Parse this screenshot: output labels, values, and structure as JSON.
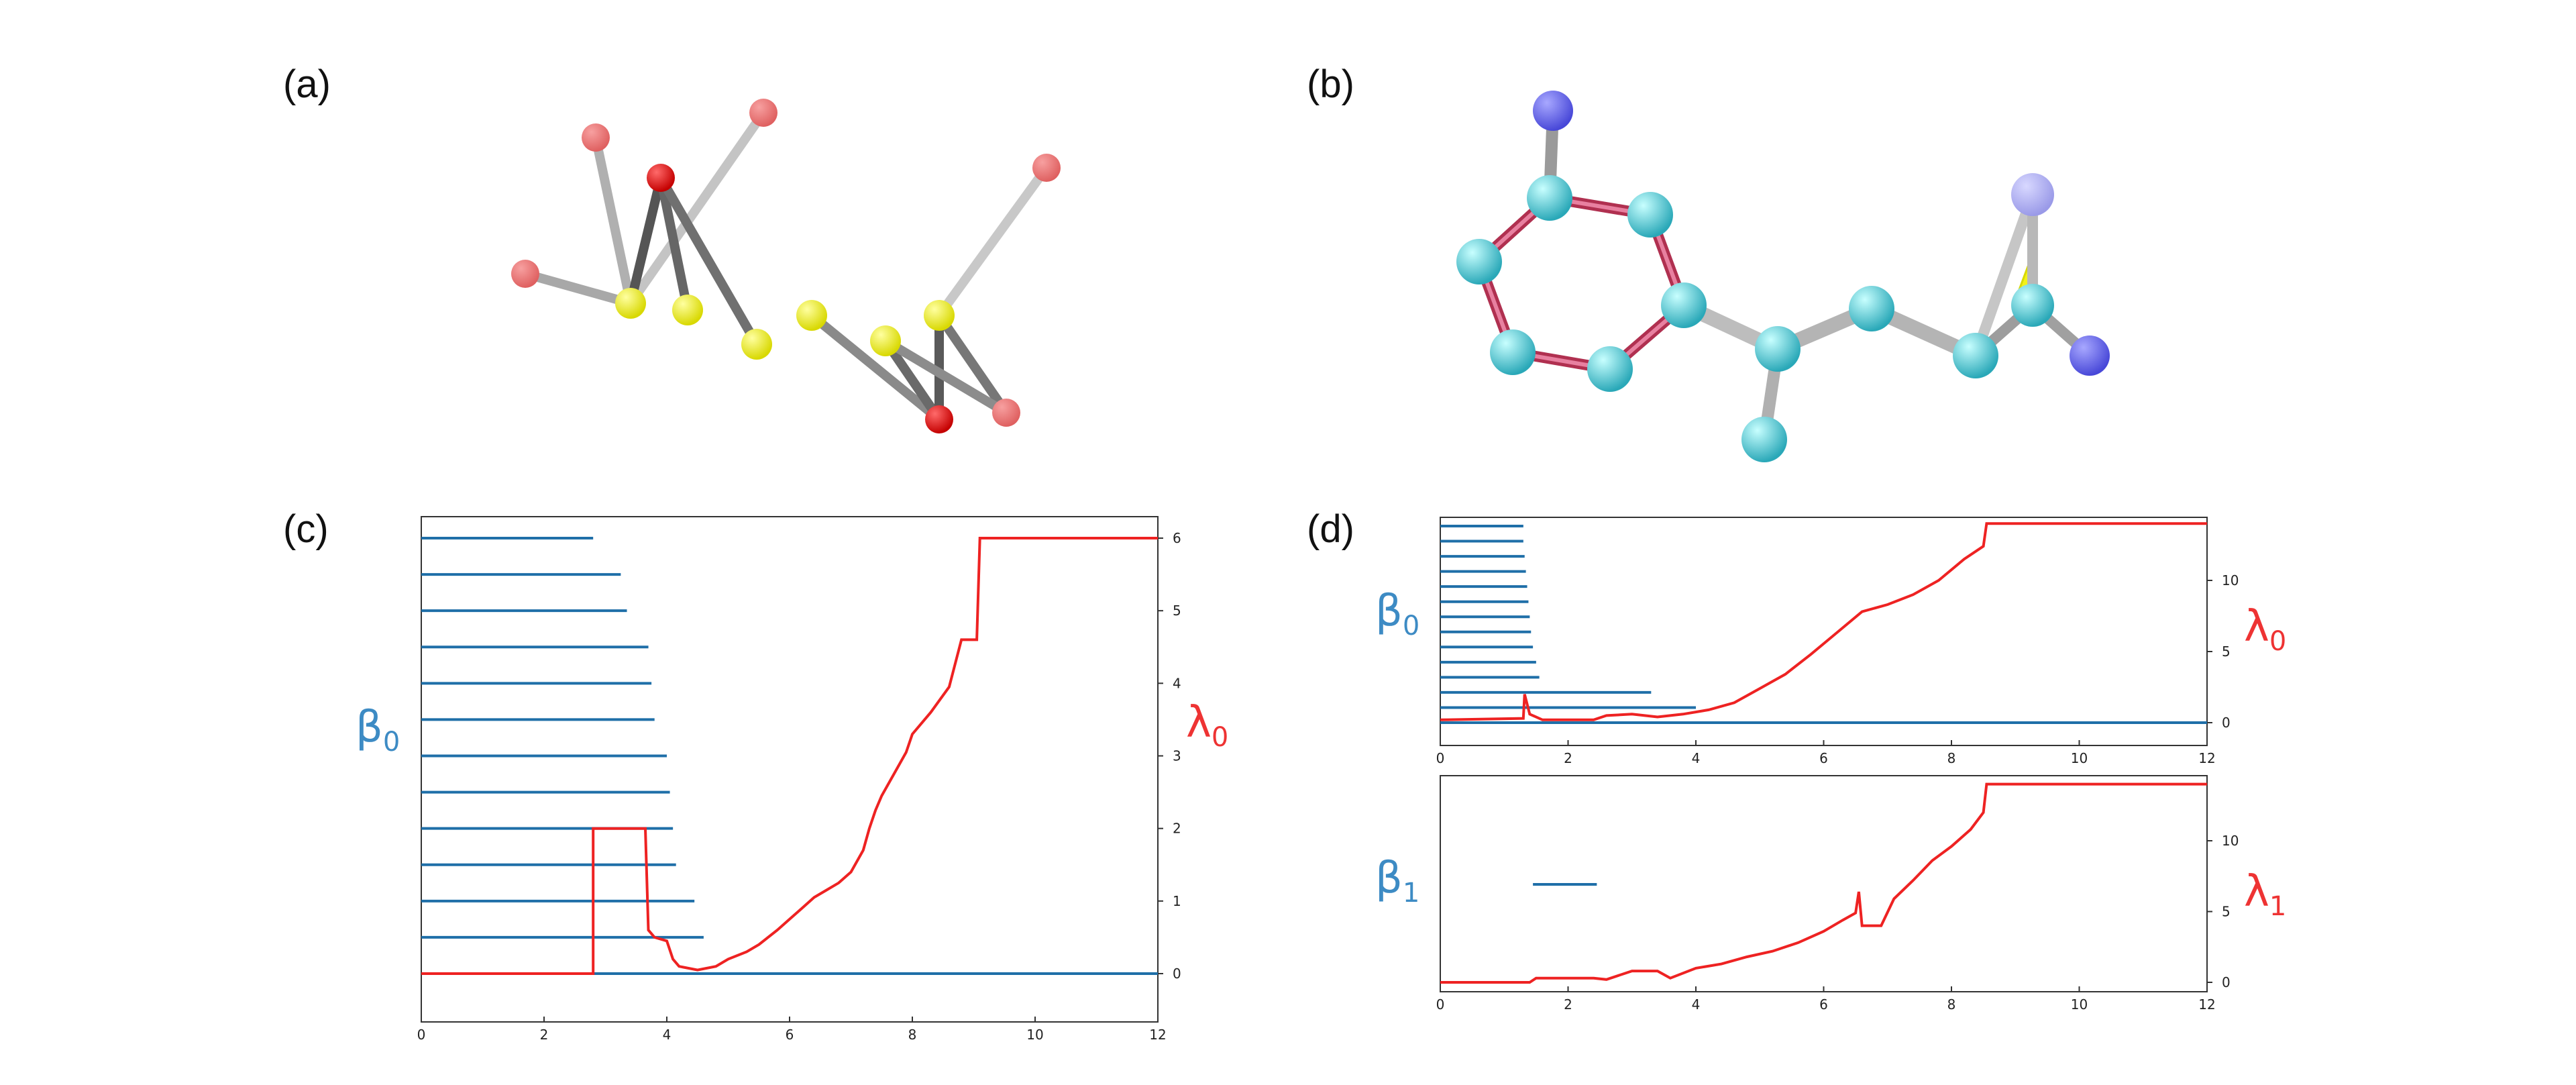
{
  "panels": {
    "a": {
      "label": "(a)"
    },
    "b": {
      "label": "(b)"
    },
    "c": {
      "label": "(c)"
    },
    "d": {
      "label": "(d)"
    }
  },
  "colors": {
    "barcode": "#1f6fa8",
    "lambda": "#ee2222",
    "beta_label": "#3d8bc4",
    "lambda_label": "#ee3333"
  },
  "axis_labels": {
    "c_left": {
      "main": "β",
      "sub": "0"
    },
    "c_right": {
      "main": "λ",
      "sub": "0"
    },
    "d_top_left": {
      "main": "β",
      "sub": "0"
    },
    "d_top_right": {
      "main": "λ",
      "sub": "0"
    },
    "d_bot_left": {
      "main": "β",
      "sub": "1"
    },
    "d_bot_right": {
      "main": "λ",
      "sub": "1"
    }
  },
  "chart_data": [
    {
      "id": "c",
      "type": "line",
      "xlim": [
        0,
        12
      ],
      "y2lim": [
        0,
        6
      ],
      "x_ticks": [
        "0",
        "2",
        "4",
        "6",
        "8",
        "10",
        "12"
      ],
      "y2_ticks": [
        "0",
        "1",
        "2",
        "3",
        "4",
        "5",
        "6"
      ],
      "barcode_beta0": [
        [
          0,
          2.8
        ],
        [
          0,
          3.25
        ],
        [
          0,
          3.35
        ],
        [
          0,
          3.7
        ],
        [
          0,
          3.75
        ],
        [
          0,
          3.8
        ],
        [
          0,
          4.0
        ],
        [
          0,
          4.05
        ],
        [
          0,
          4.1
        ],
        [
          0,
          4.15
        ],
        [
          0,
          4.45
        ],
        [
          0,
          4.6
        ],
        [
          0,
          12
        ]
      ],
      "lambda0": {
        "x": [
          0,
          2.8,
          2.8,
          3.65,
          3.7,
          3.8,
          4.0,
          4.1,
          4.2,
          4.5,
          4.8,
          5.0,
          5.3,
          5.5,
          5.8,
          6.0,
          6.2,
          6.4,
          6.6,
          6.8,
          7.0,
          7.2,
          7.3,
          7.4,
          7.5,
          7.7,
          7.9,
          8.0,
          8.3,
          8.6,
          8.8,
          9.05,
          9.1,
          12
        ],
        "y": [
          0,
          0,
          2.0,
          2.0,
          0.6,
          0.5,
          0.45,
          0.2,
          0.1,
          0.05,
          0.1,
          0.2,
          0.3,
          0.4,
          0.6,
          0.75,
          0.9,
          1.05,
          1.15,
          1.25,
          1.4,
          1.7,
          2.0,
          2.25,
          2.45,
          2.75,
          3.05,
          3.3,
          3.6,
          3.95,
          4.6,
          4.6,
          6.0,
          6.0
        ]
      }
    },
    {
      "id": "d_top",
      "type": "line",
      "xlim": [
        0,
        12
      ],
      "y2lim": [
        -1,
        14
      ],
      "x_ticks": [
        "0",
        "2",
        "4",
        "6",
        "8",
        "10",
        "12"
      ],
      "y2_ticks": [
        "0",
        "5",
        "10"
      ],
      "barcode_beta0": [
        [
          0,
          1.3
        ],
        [
          0,
          1.3
        ],
        [
          0,
          1.32
        ],
        [
          0,
          1.34
        ],
        [
          0,
          1.36
        ],
        [
          0,
          1.38
        ],
        [
          0,
          1.4
        ],
        [
          0,
          1.42
        ],
        [
          0,
          1.45
        ],
        [
          0,
          1.5
        ],
        [
          0,
          1.55
        ],
        [
          0,
          3.3
        ],
        [
          0,
          4.0
        ],
        [
          0,
          12
        ]
      ],
      "lambda0": {
        "x": [
          0,
          1.3,
          1.32,
          1.4,
          1.6,
          2.4,
          2.6,
          3.0,
          3.4,
          3.8,
          4.2,
          4.6,
          5.0,
          5.4,
          5.8,
          6.2,
          6.6,
          7.0,
          7.4,
          7.8,
          8.2,
          8.5,
          8.55,
          12
        ],
        "y": [
          0.2,
          0.3,
          2.0,
          0.6,
          0.2,
          0.2,
          0.5,
          0.6,
          0.4,
          0.6,
          0.9,
          1.4,
          2.4,
          3.4,
          4.8,
          6.3,
          7.8,
          8.3,
          9.0,
          10.0,
          11.5,
          12.4,
          14.0,
          14.0
        ]
      }
    },
    {
      "id": "d_bottom",
      "type": "line",
      "xlim": [
        0,
        12
      ],
      "y2lim": [
        -1,
        14
      ],
      "x_ticks": [
        "0",
        "2",
        "4",
        "6",
        "8",
        "10",
        "12"
      ],
      "y2_ticks": [
        "0",
        "5",
        "10"
      ],
      "barcode_beta1": [
        [
          1.45,
          2.45
        ]
      ],
      "lambda1": {
        "x": [
          0,
          1.4,
          1.5,
          2.4,
          2.6,
          3.0,
          3.4,
          3.6,
          4.0,
          4.4,
          4.8,
          5.2,
          5.6,
          6.0,
          6.3,
          6.5,
          6.55,
          6.6,
          6.9,
          7.1,
          7.4,
          7.7,
          8.0,
          8.3,
          8.5,
          8.55,
          12
        ],
        "y": [
          0,
          0,
          0.3,
          0.3,
          0.2,
          0.8,
          0.8,
          0.3,
          1.0,
          1.3,
          1.8,
          2.2,
          2.8,
          3.6,
          4.4,
          4.9,
          6.4,
          4.0,
          4.0,
          5.9,
          7.2,
          8.6,
          9.6,
          10.8,
          12.0,
          14.0,
          14.0
        ]
      }
    }
  ]
}
